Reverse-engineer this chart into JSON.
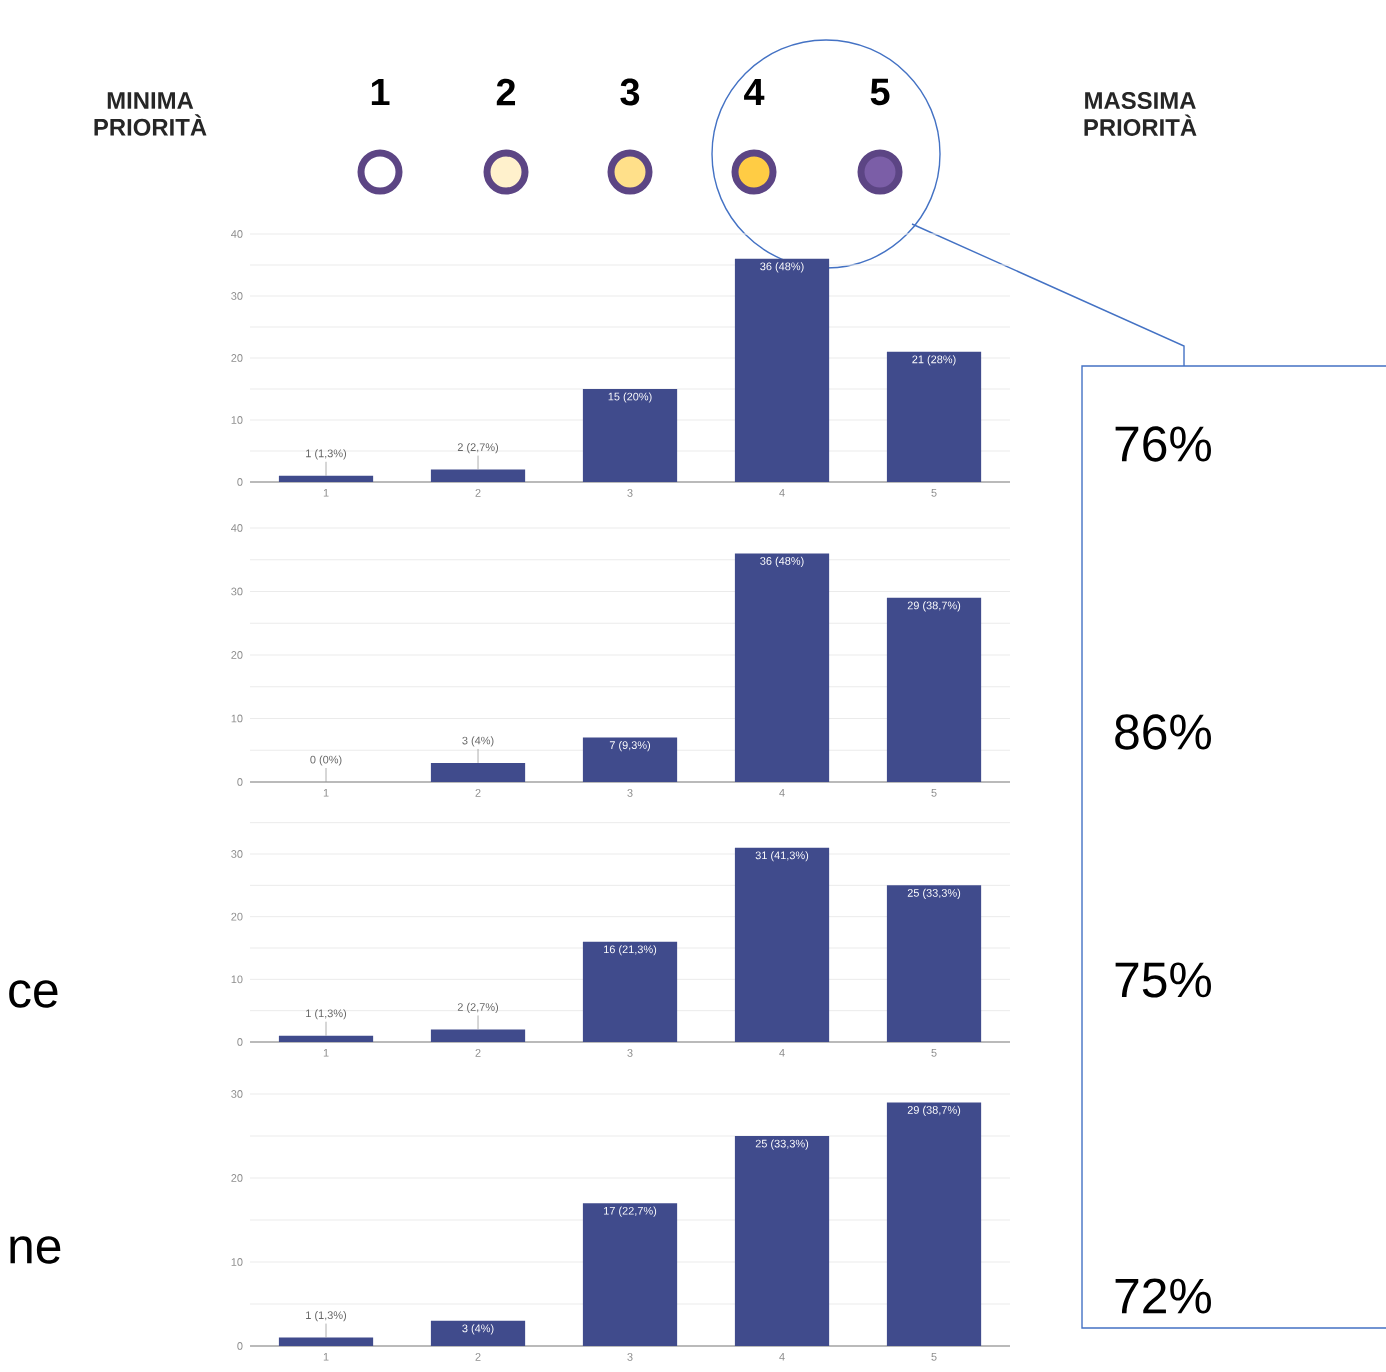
{
  "chart_data": [
    {
      "type": "bar",
      "categories": [
        "1",
        "2",
        "3",
        "4",
        "5"
      ],
      "values": [
        1,
        2,
        15,
        36,
        21
      ],
      "color": "#404b8c",
      "value_labels": [
        "1 (1,3%)",
        "2 (2,7%)",
        "15 (20%)",
        "36 (48%)",
        "21 (28%)"
      ],
      "ylim": [
        0,
        40
      ],
      "yticks": [
        0,
        {
          "value": 5,
          "label": null
        },
        10,
        {
          "value": 15,
          "label": null
        },
        20,
        {
          "value": 25,
          "label": null
        },
        30,
        {
          "value": 35,
          "label": null
        },
        40
      ],
      "grid": "y",
      "annotations": [
        "MINIMA PRIORITÀ",
        "1",
        "2",
        "3",
        "4",
        "5",
        "MASSIMA PRIORITÀ",
        "76%"
      ]
    },
    {
      "type": "bar",
      "categories": [
        "1",
        "2",
        "3",
        "4",
        "5"
      ],
      "values": [
        0,
        3,
        7,
        36,
        29
      ],
      "color": "#404b8c",
      "value_labels": [
        "0 (0%)",
        "3 (4%)",
        "7 (9,3%)",
        "36 (48%)",
        "29 (38,7%)"
      ],
      "ylim": [
        0,
        40
      ],
      "yticks": [
        0,
        {
          "value": 5,
          "label": null
        },
        10,
        {
          "value": 15,
          "label": null
        },
        20,
        {
          "value": 25,
          "label": null
        },
        30,
        {
          "value": 35,
          "label": null
        },
        40
      ],
      "grid": "y",
      "annotations": [
        "86%"
      ]
    },
    {
      "type": "bar",
      "categories": [
        "1",
        "2",
        "3",
        "4",
        "5"
      ],
      "values": [
        1,
        2,
        16,
        31,
        25
      ],
      "color": "#404b8c",
      "value_labels": [
        "1 (1,3%)",
        "2 (2,7%)",
        "16 (21,3%)",
        "31 (41,3%)",
        "25 (33,3%)"
      ],
      "ylim": [
        0,
        35
      ],
      "yticks": [
        0,
        {
          "value": 5,
          "label": null
        },
        10,
        {
          "value": 15,
          "label": null
        },
        20,
        {
          "value": 25,
          "label": null
        },
        30,
        {
          "value": 35,
          "label": null
        }
      ],
      "grid": "y",
      "annotations": [
        "75%",
        "ce"
      ]
    },
    {
      "type": "bar",
      "categories": [
        "1",
        "2",
        "3",
        "4",
        "5"
      ],
      "values": [
        1,
        3,
        17,
        25,
        29
      ],
      "color": "#404b8c",
      "value_labels": [
        "1 (1,3%)",
        "3 (4%)",
        "17 (22,7%)",
        "25 (33,3%)",
        "29 (38,7%)"
      ],
      "ylim": [
        0,
        30
      ],
      "yticks": [
        0,
        {
          "value": 5,
          "label": null
        },
        10,
        {
          "value": 15,
          "label": null
        },
        20,
        {
          "value": 25,
          "label": null
        },
        30
      ],
      "grid": "y",
      "annotations": [
        "72%",
        "ne"
      ]
    }
  ]
}
